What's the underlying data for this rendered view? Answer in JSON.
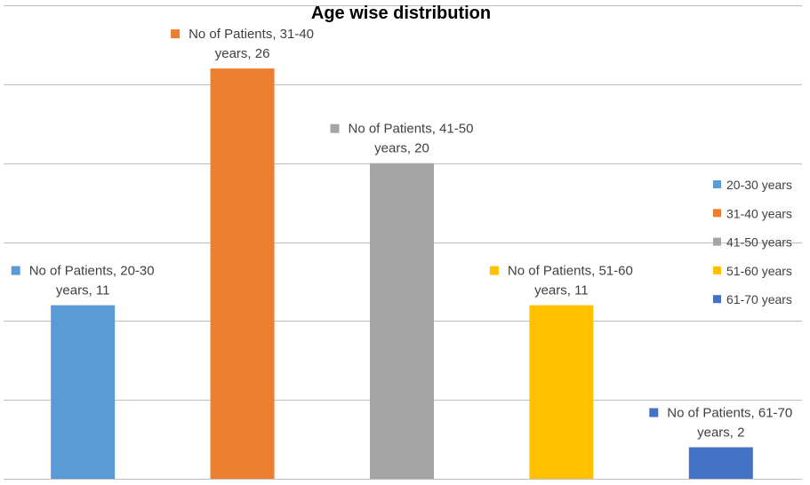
{
  "chart_data": {
    "type": "bar",
    "title": "Age wise distribution",
    "series_name": "No of Patients",
    "categories": [
      "20-30 years",
      "31-40 years",
      "41-50 years",
      "51-60 years",
      "61-70 years"
    ],
    "values": [
      11,
      26,
      20,
      11,
      2
    ],
    "colors": [
      "#5B9BD5",
      "#ED7D31",
      "#A5A5A5",
      "#FFC000",
      "#4472C4"
    ],
    "data_labels": [
      [
        "No of Patients, 20-30",
        "years, 11"
      ],
      [
        "No of Patients, 31-40",
        "years, 26"
      ],
      [
        "No of Patients, 41-50",
        "years, 20"
      ],
      [
        "No of Patients, 51-60",
        "years, 11"
      ],
      [
        "No of Patients, 61-70",
        "years, 2"
      ]
    ],
    "ylim": [
      0,
      30
    ],
    "grid": true,
    "legend": "right",
    "xlabel": "",
    "ylabel": ""
  }
}
